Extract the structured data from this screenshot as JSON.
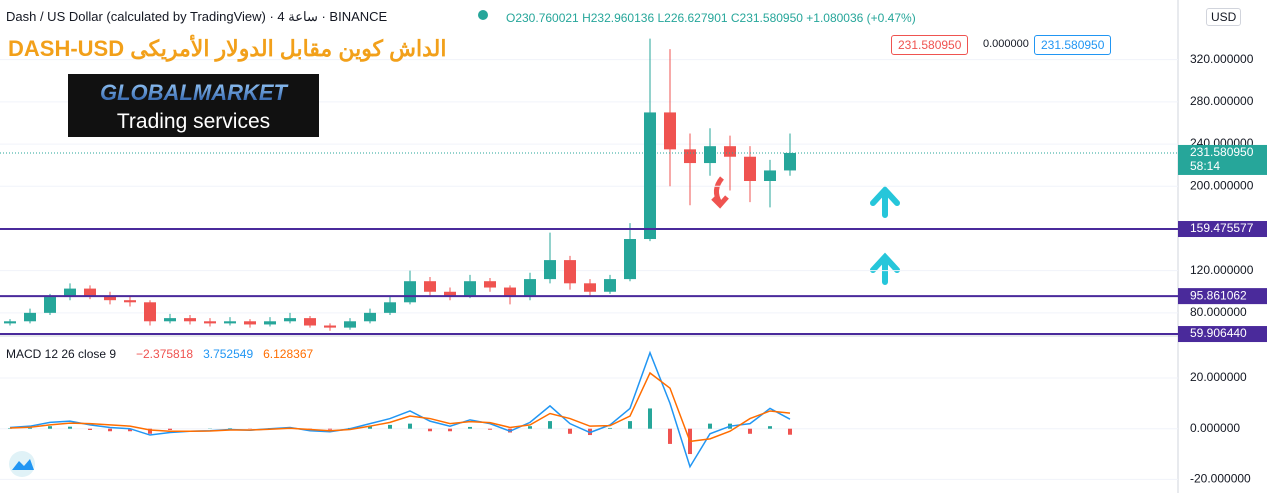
{
  "header": {
    "symbol": "Dash / US Dollar (calculated by TradingView) · 4 ساعة · BINANCE",
    "ohlc": "O230.760021 H232.960136 L226.627901 C231.580950 +1.080036 (+0.47%)",
    "headline": "DASH-USD الداش كوين مقابل الدولار الأمريكى",
    "logo_title": "GLOBALMARKET",
    "logo_subtitle": "Trading services",
    "sell": "231.580950",
    "spread": "0.000000",
    "buy": "231.580950",
    "currency": "USD"
  },
  "chart_data": [
    {
      "type": "candlestick",
      "series": {
        "up_color": "#26a69a",
        "down_color": "#ef5350",
        "open": [
          70,
          72,
          80,
          95,
          103,
          96,
          92,
          90,
          72,
          75,
          72,
          70,
          72,
          69,
          72,
          75,
          68,
          66,
          72,
          80,
          90,
          110,
          100,
          96,
          110,
          104,
          96,
          112,
          130,
          108,
          100,
          112,
          150,
          270,
          235,
          222,
          238,
          228,
          205,
          215
        ],
        "high": [
          74,
          84,
          98,
          108,
          106,
          100,
          96,
          92,
          79,
          78,
          75,
          76,
          74,
          76,
          80,
          77,
          70,
          75,
          84,
          96,
          120,
          114,
          104,
          116,
          113,
          106,
          118,
          156,
          134,
          112,
          116,
          165,
          340,
          330,
          250,
          255,
          248,
          238,
          225,
          250
        ],
        "low": [
          68,
          70,
          78,
          92,
          93,
          88,
          86,
          68,
          70,
          69,
          67,
          68,
          66,
          67,
          70,
          66,
          63,
          64,
          70,
          78,
          88,
          96,
          92,
          94,
          100,
          88,
          92,
          108,
          102,
          96,
          98,
          110,
          148,
          200,
          182,
          210,
          196,
          185,
          180,
          210
        ],
        "close": [
          72,
          80,
          95,
          103,
          96,
          92,
          90,
          72,
          75,
          72,
          70,
          72,
          69,
          72,
          75,
          68,
          66,
          72,
          80,
          90,
          110,
          100,
          96,
          110,
          104,
          96,
          112,
          130,
          108,
          100,
          112,
          150,
          270,
          235,
          222,
          238,
          228,
          205,
          215,
          231.58095
        ]
      },
      "ylim": [
        59,
        369
      ],
      "yticks": [
        {
          "value": 80,
          "label": "80.000000"
        },
        {
          "value": 120,
          "label": "120.000000"
        },
        {
          "value": 200,
          "label": "200.000000"
        },
        {
          "value": 240,
          "label": "240.000000"
        },
        {
          "value": 280,
          "label": "280.000000"
        },
        {
          "value": 320,
          "label": "320.000000"
        }
      ],
      "levels": [
        {
          "value": 159.475577,
          "label": "159.475577"
        },
        {
          "value": 95.861062,
          "label": "95.861062"
        },
        {
          "value": 59.90644,
          "label": "59.906440"
        }
      ],
      "level_color": "#4a2a9b",
      "last_price": {
        "value": 231.58095,
        "label": "231.580950"
      },
      "countdown": "58:14"
    },
    {
      "type": "macd",
      "title": "MACD 12 26 close 9",
      "legend_values": [
        "−2.375818",
        "3.752549",
        "6.128367"
      ],
      "series": [
        {
          "color": "#26a69a",
          "negative_color": "#ef5350",
          "values": [
            0.2,
            0.4,
            1,
            0.8,
            -0.5,
            -1,
            -1,
            -2,
            -0.5,
            0,
            0.1,
            0.2,
            -0.1,
            0.2,
            0.3,
            -0.5,
            -0.4,
            0.3,
            1,
            1.5,
            2,
            -1,
            -1,
            0.7,
            -0.4,
            -1.5,
            1,
            3,
            -2,
            -2.5,
            0.3,
            3,
            8,
            -6,
            -10,
            2,
            2,
            -2,
            1,
            -2.375818
          ]
        },
        {
          "color": "#2196f3",
          "values": [
            0.5,
            1,
            2.5,
            3,
            1.5,
            0.5,
            0,
            -2.5,
            -1.5,
            -1,
            -0.8,
            -0.3,
            -0.6,
            0,
            0.5,
            -0.8,
            -1.2,
            0,
            2,
            4,
            7,
            3,
            1,
            3.5,
            2,
            -1,
            2.5,
            9,
            2,
            -1.5,
            1.5,
            8,
            30,
            10,
            -15,
            -2,
            1,
            2,
            8,
            3.752549
          ]
        },
        {
          "color": "#ff6d00",
          "values": [
            0.3,
            0.6,
            1.5,
            2.2,
            2,
            1.5,
            1,
            -0.5,
            -1,
            -1,
            -0.9,
            -0.5,
            -0.5,
            -0.2,
            0.2,
            -0.3,
            -0.8,
            -0.3,
            1,
            2.5,
            5,
            4,
            2,
            2.8,
            2.4,
            0.5,
            1.5,
            6,
            4,
            1,
            1.2,
            5,
            22,
            16,
            -5,
            -4,
            -1,
            4,
            7,
            6.128367
          ]
        }
      ],
      "ylim": [
        -23.4,
        35.8
      ],
      "yticks": [
        {
          "value": -20,
          "label": "-20.000000"
        },
        {
          "value": 0,
          "label": "0.000000"
        },
        {
          "value": 20,
          "label": "20.000000"
        }
      ]
    }
  ]
}
